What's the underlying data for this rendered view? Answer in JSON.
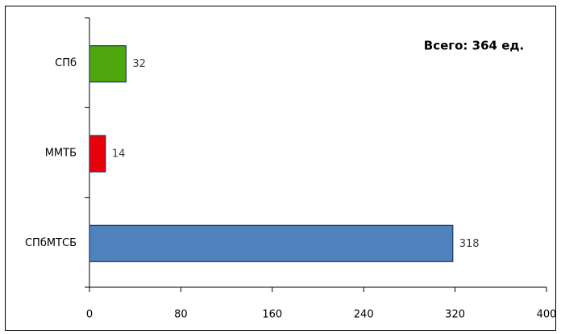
{
  "chart_data": {
    "type": "barh",
    "annotation": "Всего: 364 ед.",
    "categories": [
      "СПб",
      "ММТБ",
      "СПбМТСБ"
    ],
    "values": [
      32,
      14,
      318
    ],
    "colors": [
      "#4ea70c",
      "#e8000b",
      "#4f81bd"
    ],
    "xlim": [
      0,
      400
    ],
    "xticks": [
      0,
      80,
      160,
      240,
      320,
      400
    ],
    "grid": false
  }
}
